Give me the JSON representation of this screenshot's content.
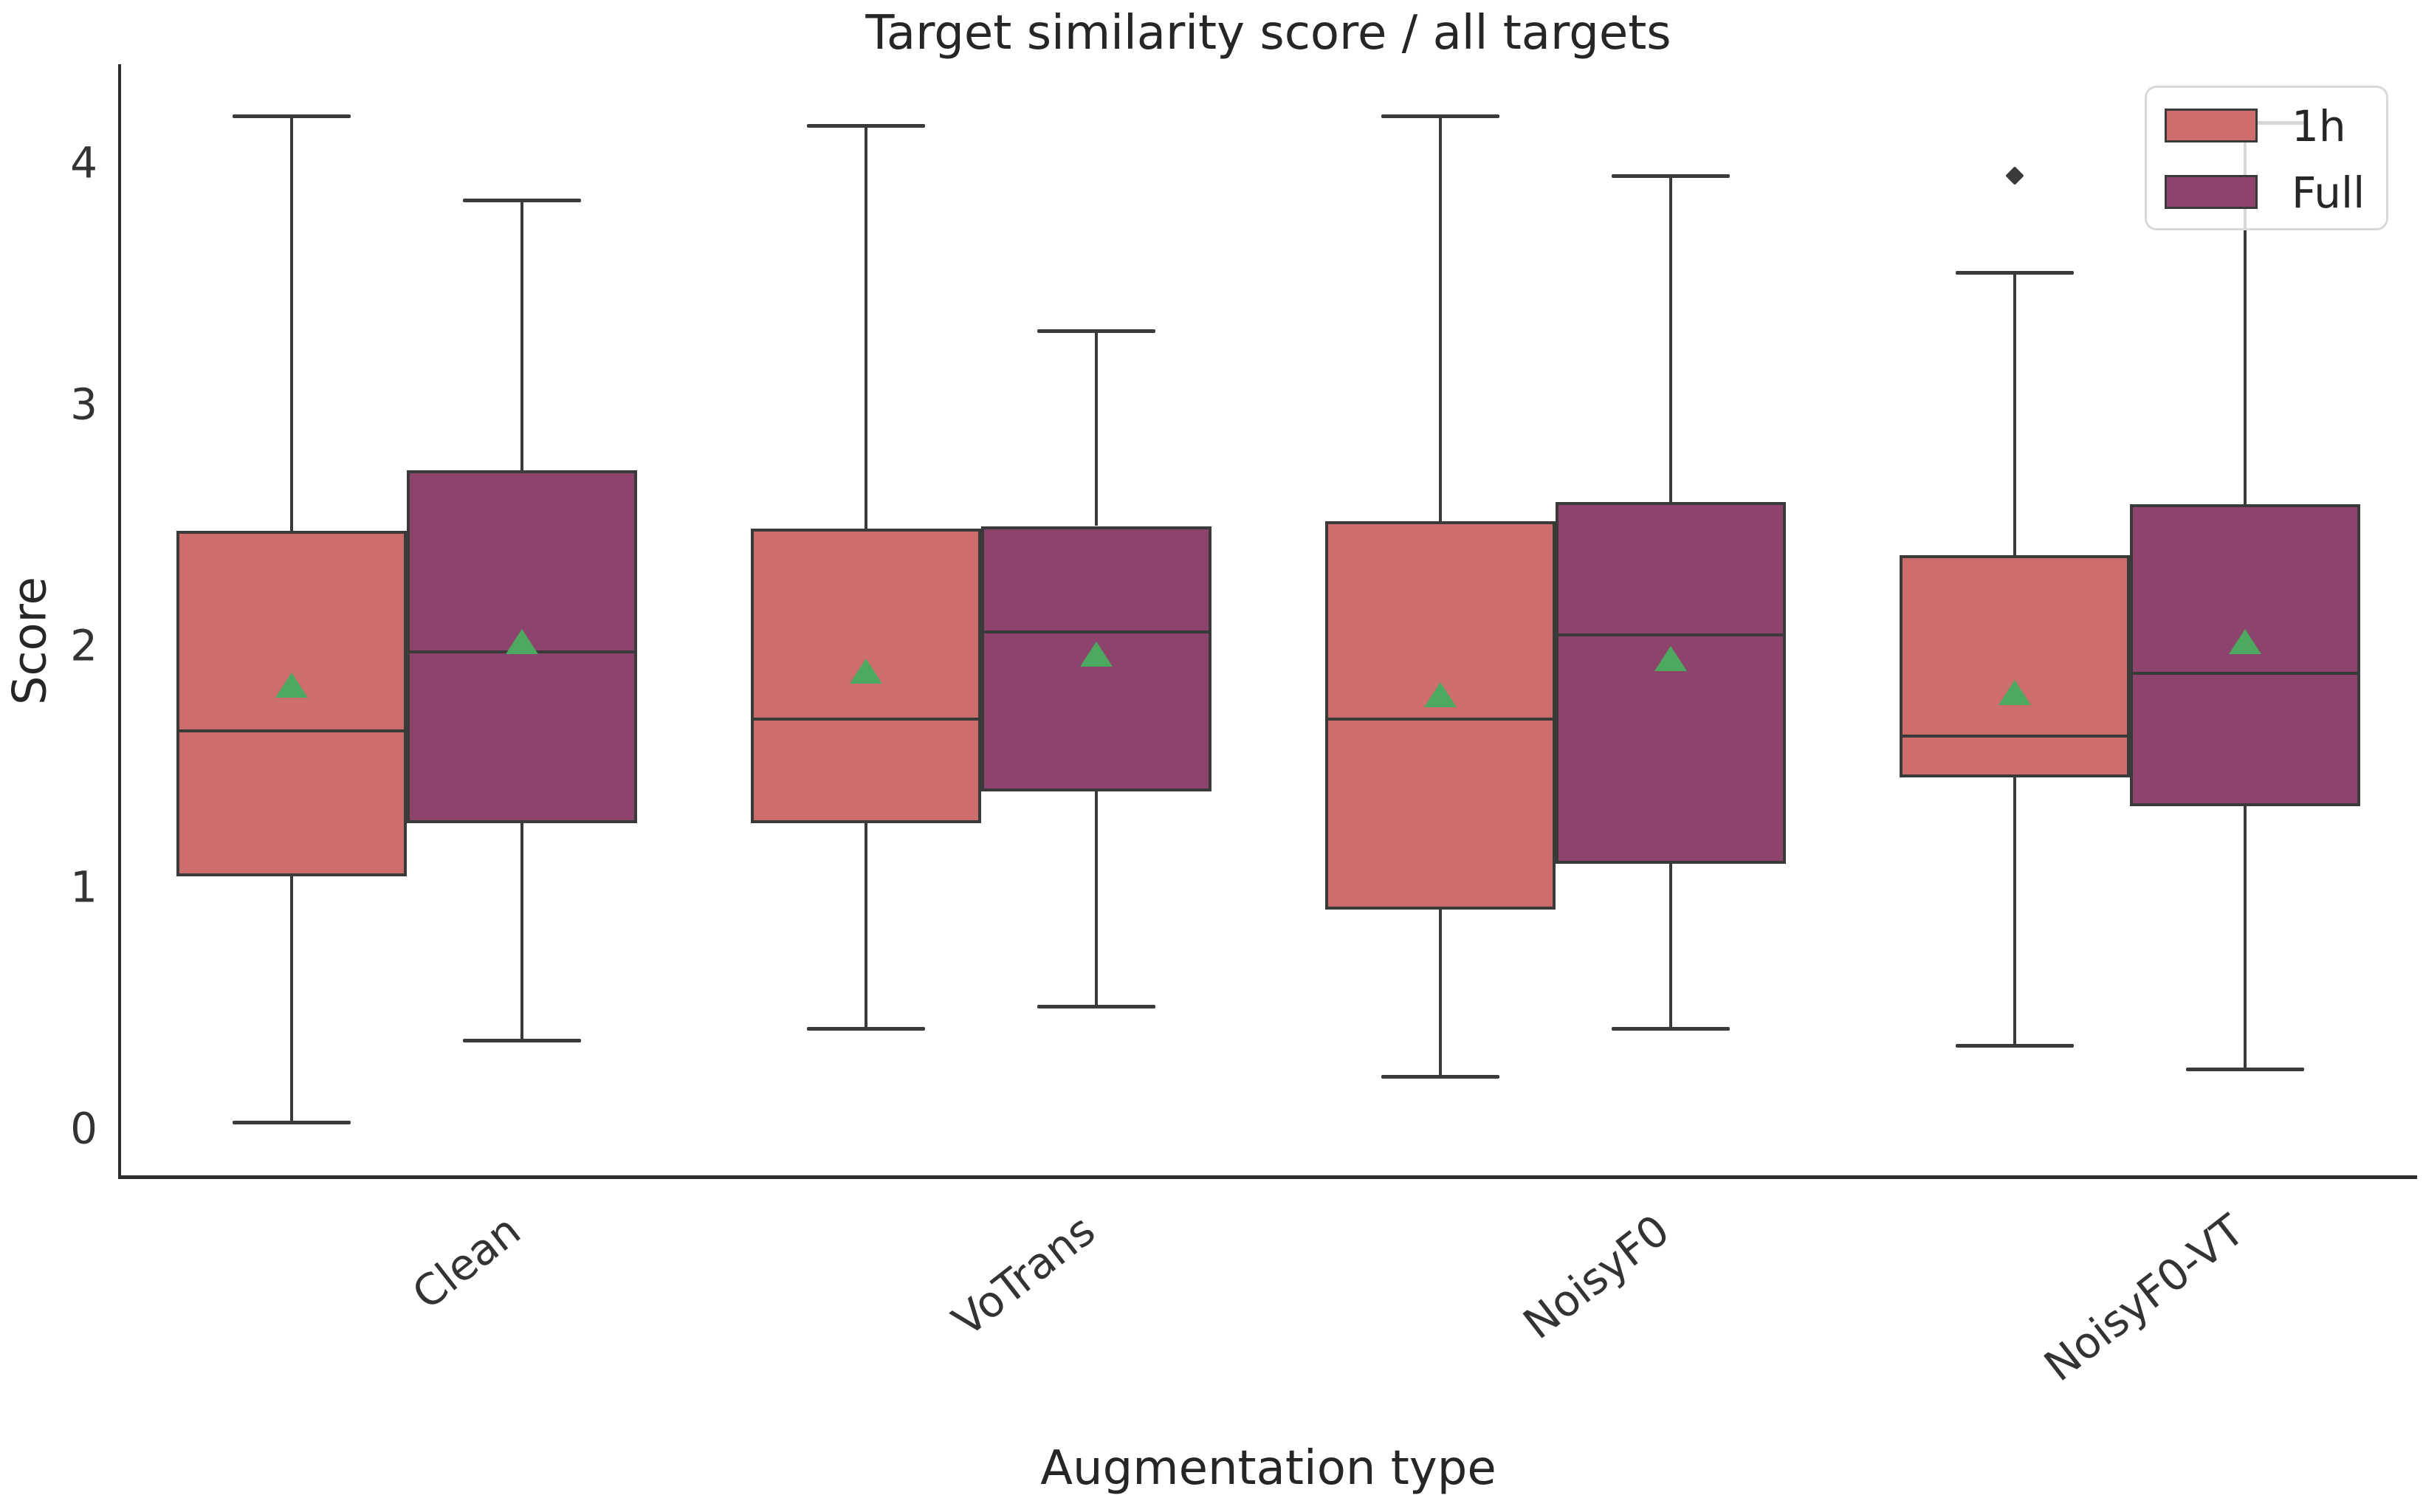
{
  "figure": {
    "title": "Target similarity score / all targets",
    "xlabel": "Augmentation type",
    "ylabel": "Score"
  },
  "legend": {
    "items": [
      {
        "label": "1h",
        "color": "#CD6E6C"
      },
      {
        "label": "Full",
        "color": "#8C436C"
      }
    ]
  },
  "chart_data": {
    "type": "boxplot",
    "title": "Target similarity score / all targets",
    "xlabel": "Augmentation type",
    "ylabel": "Score",
    "categories": [
      "Clean",
      "VoTrans",
      "NoisyF0",
      "NoisyF0-VT"
    ],
    "y_ticks": [
      "0",
      "1",
      "2",
      "3",
      "4"
    ],
    "ylim": [
      -0.2,
      4.4
    ],
    "grid": false,
    "legend_position": "upper right",
    "colors": {
      "series_1h": "#CD6E6C",
      "series_full": "#8C436C",
      "edge": "#3A3A3A",
      "mean_marker": "#4DA95F"
    },
    "series": [
      {
        "name": "1h",
        "boxes": [
          {
            "category": "Clean",
            "whislo": 0.03,
            "q1": 1.05,
            "med": 1.65,
            "mean": 1.84,
            "q3": 2.48,
            "whishi": 4.2,
            "outliers": []
          },
          {
            "category": "VoTrans",
            "whislo": 0.42,
            "q1": 1.27,
            "med": 1.7,
            "mean": 1.9,
            "q3": 2.49,
            "whishi": 4.16,
            "outliers": []
          },
          {
            "category": "NoisyF0",
            "whislo": 0.22,
            "q1": 0.91,
            "med": 1.7,
            "mean": 1.8,
            "q3": 2.52,
            "whishi": 4.2,
            "outliers": []
          },
          {
            "category": "NoisyF0-VT",
            "whislo": 0.35,
            "q1": 1.46,
            "med": 1.63,
            "mean": 1.81,
            "q3": 2.38,
            "whishi": 3.55,
            "outliers": [
              3.95
            ]
          }
        ]
      },
      {
        "name": "Full",
        "boxes": [
          {
            "category": "Clean",
            "whislo": 0.37,
            "q1": 1.27,
            "med": 1.98,
            "mean": 2.02,
            "q3": 2.73,
            "whishi": 3.85,
            "outliers": []
          },
          {
            "category": "VoTrans",
            "whislo": 0.51,
            "q1": 1.4,
            "med": 2.06,
            "mean": 1.97,
            "q3": 2.5,
            "whishi": 3.31,
            "outliers": []
          },
          {
            "category": "NoisyF0",
            "whislo": 0.42,
            "q1": 1.1,
            "med": 2.05,
            "mean": 1.95,
            "q3": 2.6,
            "whishi": 3.95,
            "outliers": []
          },
          {
            "category": "NoisyF0-VT",
            "whislo": 0.25,
            "q1": 1.34,
            "med": 1.89,
            "mean": 2.02,
            "q3": 2.59,
            "whishi": 4.17,
            "outliers": []
          }
        ]
      }
    ]
  }
}
